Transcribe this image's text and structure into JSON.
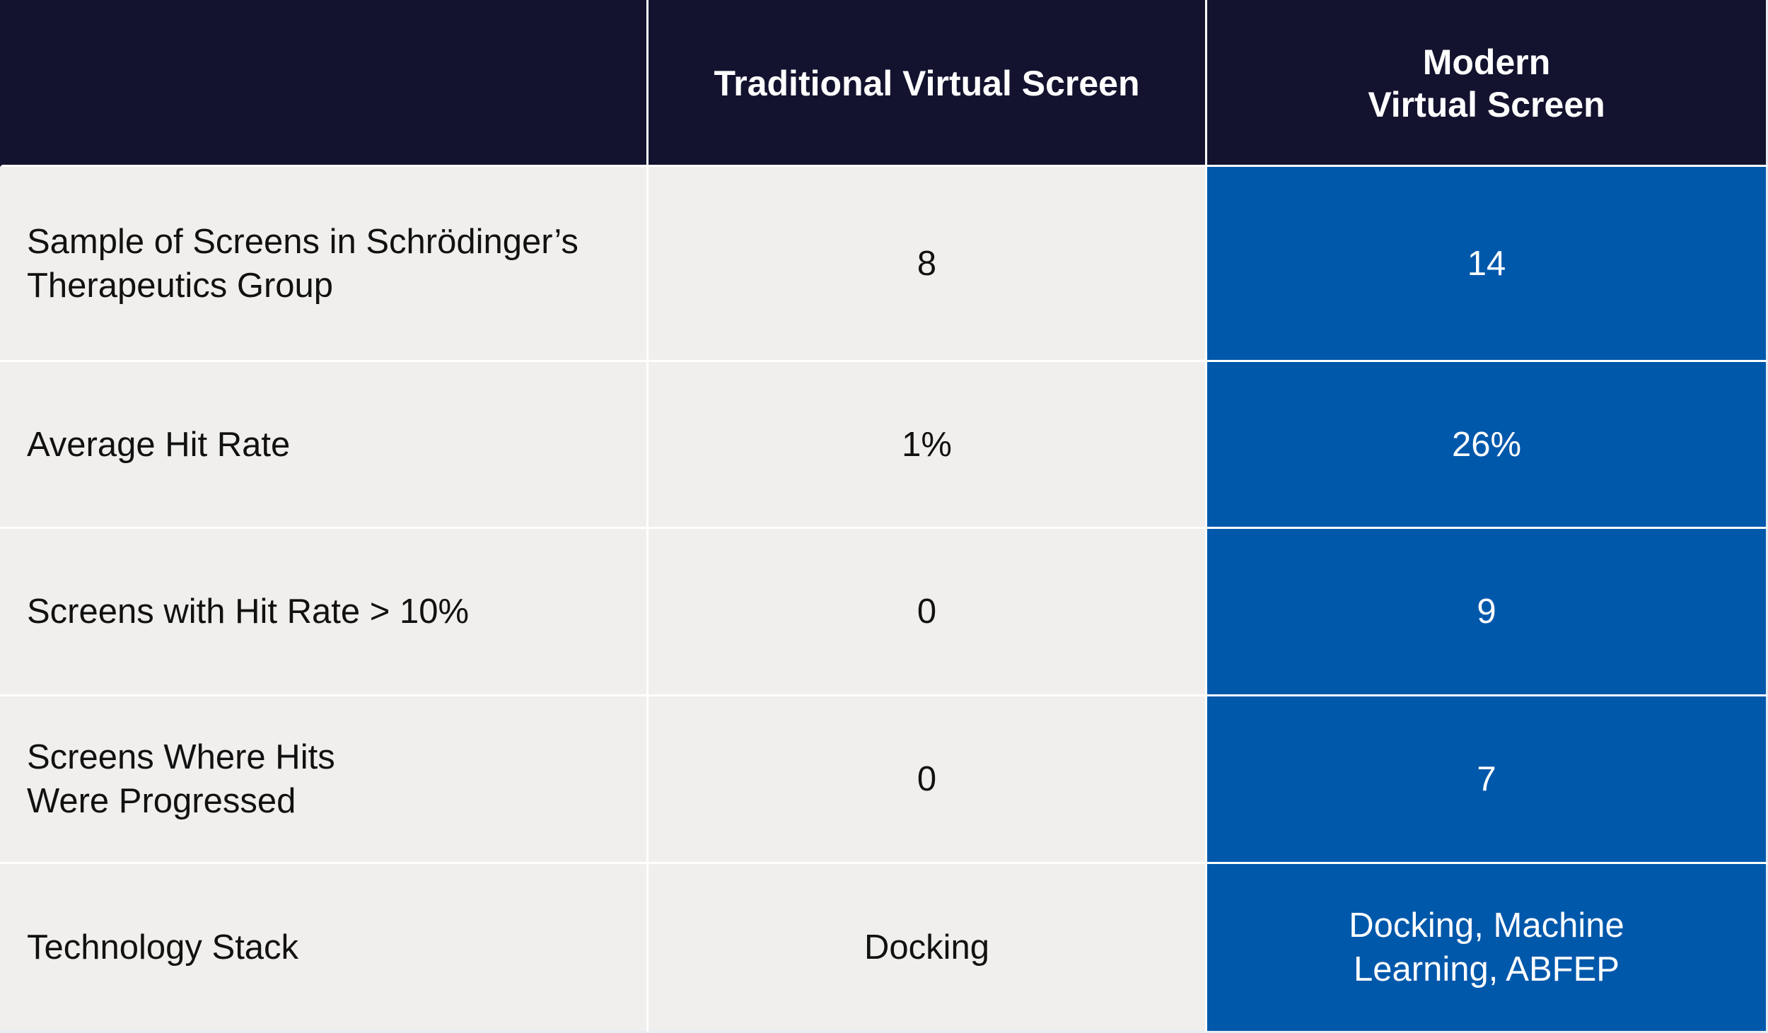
{
  "table": {
    "headers": {
      "empty": "",
      "traditional": "Traditional Virtual Screen",
      "modern": "Modern\nVirtual Screen"
    },
    "rows": [
      {
        "label": "Sample of Screens in Schrödinger’s\nTherapeutics Group",
        "traditional": "8",
        "modern": "14"
      },
      {
        "label": "Average Hit Rate",
        "traditional": "1%",
        "modern": "26%"
      },
      {
        "label": "Screens with Hit Rate > 10%",
        "traditional": "0",
        "modern": "9"
      },
      {
        "label": "Screens Where Hits\nWere Progressed",
        "traditional": "0",
        "modern": "7"
      },
      {
        "label": "Technology Stack",
        "traditional": "Docking",
        "modern": "Docking, Machine\nLearning, ABFEP"
      }
    ]
  },
  "colors": {
    "header_bg": "#13132f",
    "label_bg": "#f0efed",
    "modern_bg": "#0058ab",
    "gridline": "#ffffff"
  }
}
